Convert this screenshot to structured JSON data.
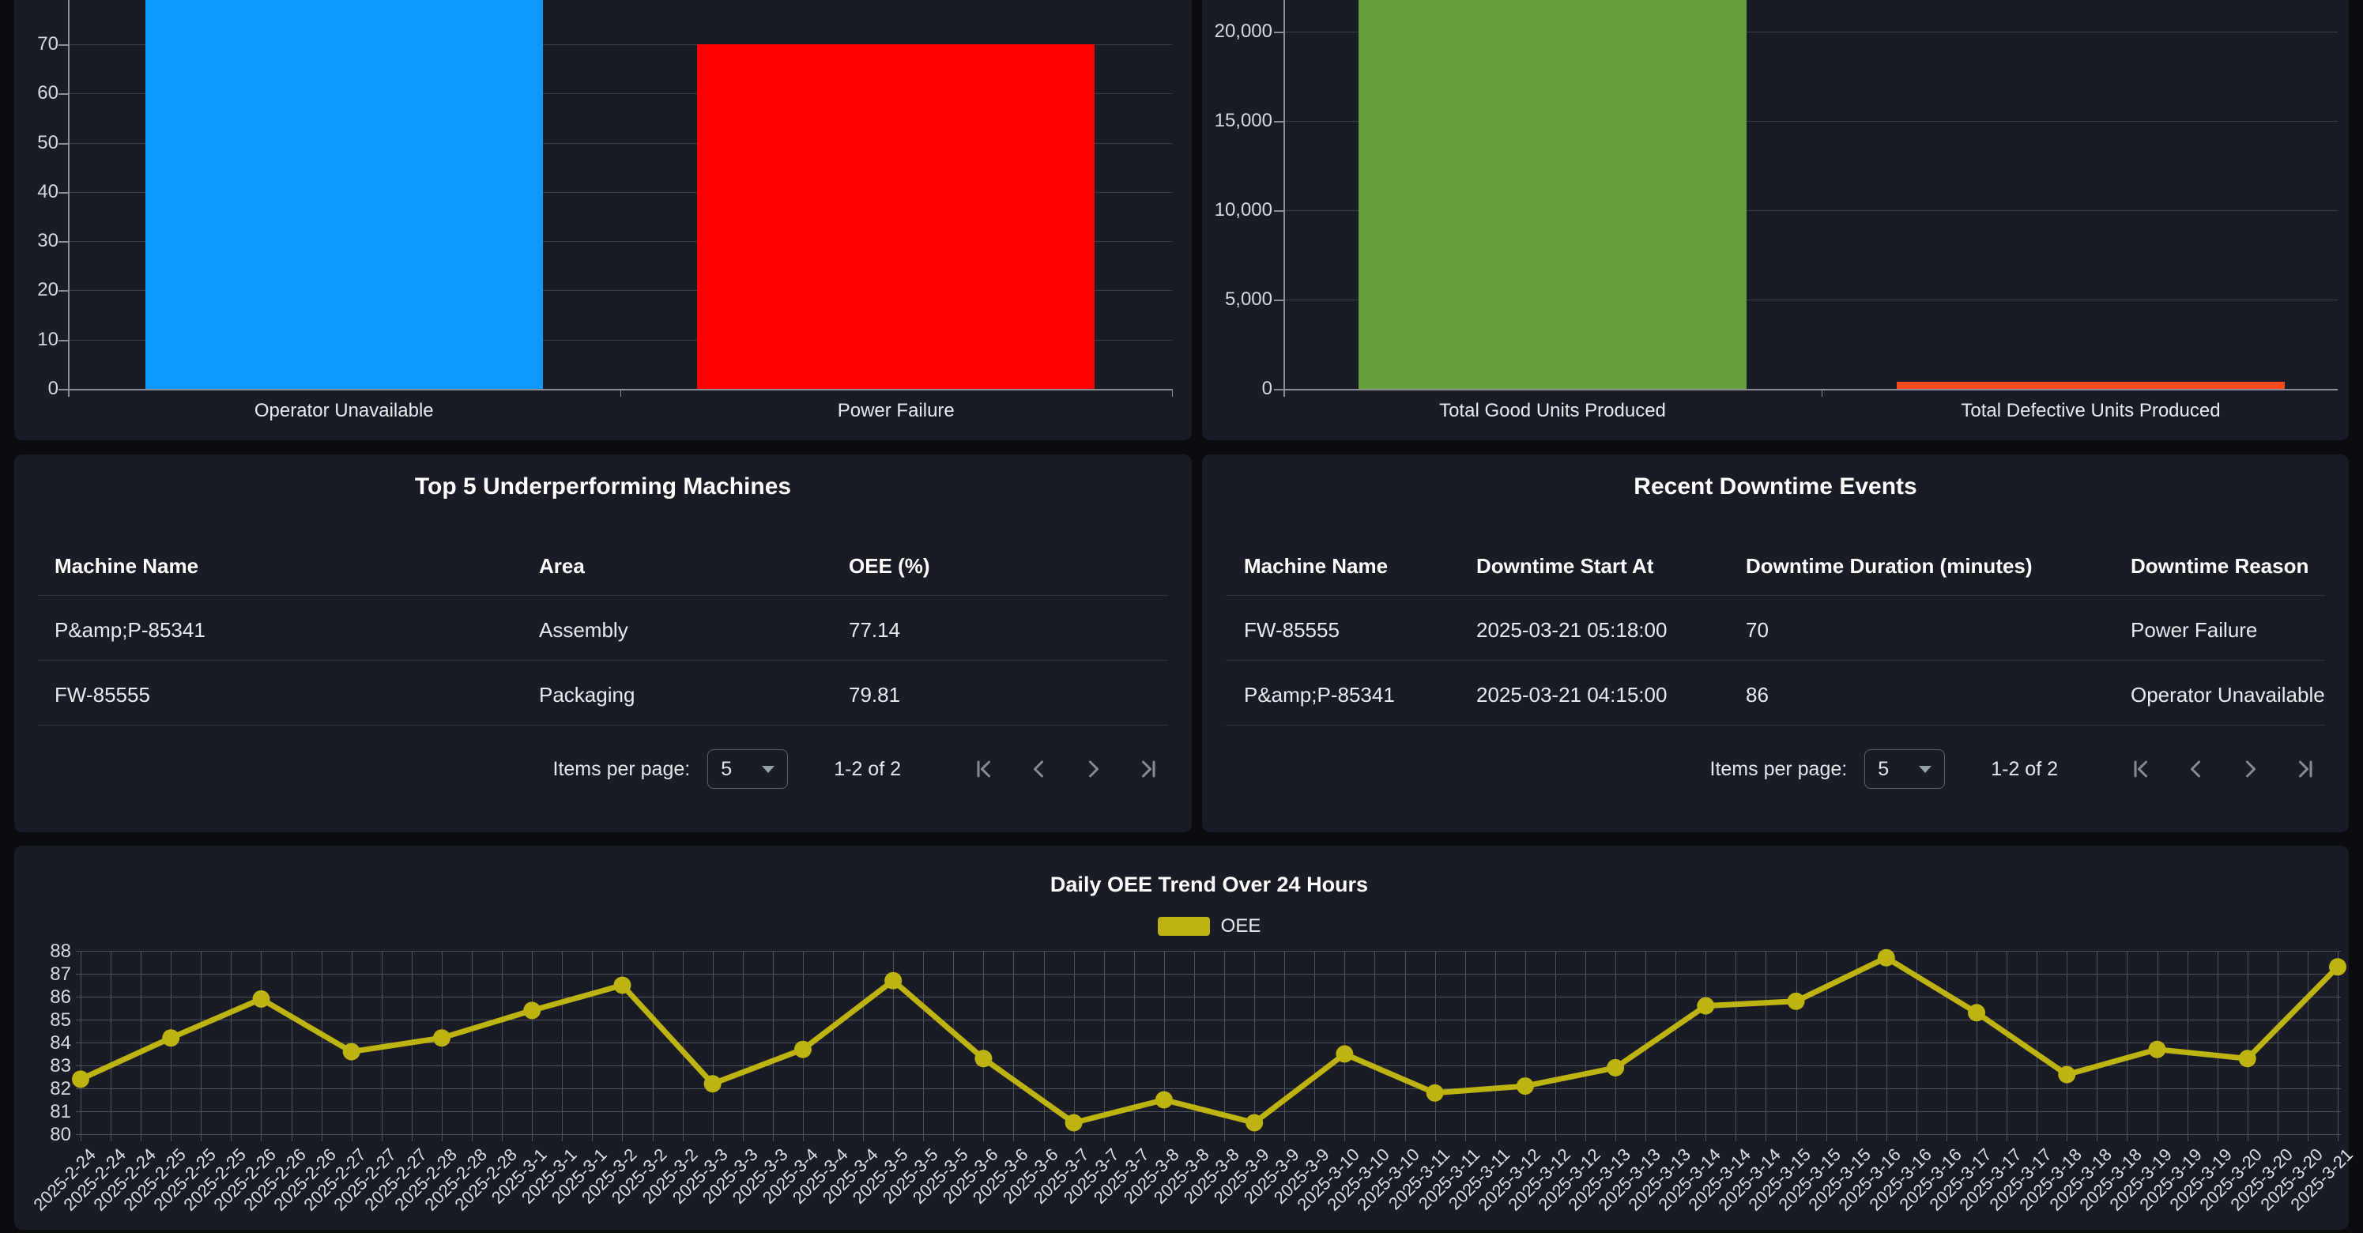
{
  "theme": {
    "page_bg": "#0a0c10",
    "panel_bg": "#191c25",
    "text": "#ffffff",
    "text_soft": "#e8eaed",
    "grid_subtle": "#3a3d46",
    "grid_strong": "#4e525c",
    "axis": "#8a8e96",
    "divider": "#31343c",
    "control_border": "#5c606a",
    "icon": "#868b93"
  },
  "chart_data": [
    {
      "id": "downtime_by_reason",
      "type": "bar",
      "categories": [
        "Operator Unavailable",
        "Power Failure"
      ],
      "values": [
        86,
        70
      ],
      "bar_colors": [
        "#0d99ff",
        "#ff0000"
      ],
      "yticks": [
        0,
        10,
        20,
        30,
        40,
        50,
        60,
        70
      ],
      "ytick_labels": [
        "0",
        "10",
        "20",
        "30",
        "40",
        "50",
        "60",
        "70"
      ],
      "ylim_visible": [
        0,
        79
      ],
      "top_clipped": [
        true,
        false
      ],
      "grid": true
    },
    {
      "id": "units_produced",
      "type": "bar",
      "categories": [
        "Total Good Units Produced",
        "Total Defective Units Produced"
      ],
      "values": [
        24000,
        400
      ],
      "bar_colors": [
        "#63a03a",
        "#f94b1c"
      ],
      "yticks": [
        0,
        5000,
        10000,
        15000,
        20000
      ],
      "ytick_labels": [
        "0",
        "5,000",
        "10,000",
        "15,000",
        "20,000"
      ],
      "ylim_visible": [
        0,
        21800
      ],
      "top_clipped": [
        true,
        false
      ],
      "grid": true
    },
    {
      "id": "daily_oee_trend",
      "type": "line",
      "title": "Daily OEE Trend Over 24 Hours",
      "legend": [
        "OEE"
      ],
      "legend_position": "top-center",
      "line_color": "#bdb412",
      "x": [
        "2025-2-24",
        "2025-2-25",
        "2025-2-26",
        "2025-2-27",
        "2025-2-28",
        "2025-3-1",
        "2025-3-2",
        "2025-3-3",
        "2025-3-4",
        "2025-3-5",
        "2025-3-6",
        "2025-3-7",
        "2025-3-8",
        "2025-3-9",
        "2025-3-10",
        "2025-3-11",
        "2025-3-12",
        "2025-3-13",
        "2025-3-14",
        "2025-3-15",
        "2025-3-16",
        "2025-3-17",
        "2025-3-18",
        "2025-3-19",
        "2025-3-20",
        "2025-3-21"
      ],
      "values": [
        82.4,
        84.2,
        85.9,
        83.6,
        84.2,
        85.4,
        86.5,
        82.2,
        83.7,
        86.7,
        83.3,
        80.5,
        81.5,
        80.5,
        83.5,
        81.8,
        82.1,
        82.9,
        85.6,
        85.8,
        87.7,
        85.3,
        82.6,
        83.7,
        83.3,
        87.3
      ],
      "x_tick_repeat_per_day": 3,
      "last_tick_single": true,
      "yticks": [
        80,
        81,
        82,
        83,
        84,
        85,
        86,
        87,
        88
      ],
      "ylim": [
        80,
        88
      ],
      "grid": true
    }
  ],
  "tables": {
    "underperforming": {
      "title": "Top 5 Underperforming Machines",
      "columns": [
        "Machine Name",
        "Area",
        "OEE (%)"
      ],
      "rows": [
        [
          "P&amp;P-85341",
          "Assembly",
          "77.14"
        ],
        [
          "FW-85555",
          "Packaging",
          "79.81"
        ]
      ],
      "paginator": {
        "items_per_page_label": "Items per page:",
        "page_size": "5",
        "range_label": "1-2 of 2"
      }
    },
    "downtime_events": {
      "title": "Recent Downtime Events",
      "columns": [
        "Machine Name",
        "Downtime Start At",
        "Downtime Duration (minutes)",
        "Downtime Reason"
      ],
      "rows": [
        [
          "FW-85555",
          "2025-03-21 05:18:00",
          "70",
          "Power Failure"
        ],
        [
          "P&amp;P-85341",
          "2025-03-21 04:15:00",
          "86",
          "Operator Unavailable"
        ]
      ],
      "paginator": {
        "items_per_page_label": "Items per page:",
        "page_size": "5",
        "range_label": "1-2 of 2"
      }
    }
  }
}
